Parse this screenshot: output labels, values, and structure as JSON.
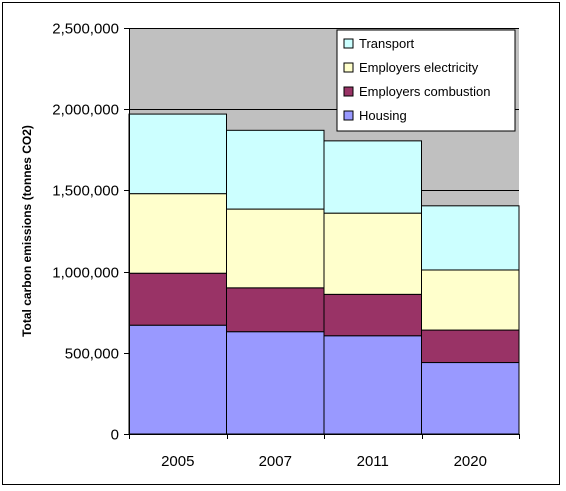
{
  "chart_data": {
    "type": "bar",
    "stacked": true,
    "categories": [
      "2005",
      "2007",
      "2011",
      "2020"
    ],
    "series": [
      {
        "name": "Housing",
        "color": "#9999ff",
        "values": [
          670000,
          630000,
          605000,
          440000
        ]
      },
      {
        "name": "Employers combustion",
        "color": "#993366",
        "values": [
          320000,
          270000,
          255000,
          200000
        ]
      },
      {
        "name": "Employers electricity",
        "color": "#ffffcc",
        "values": [
          490000,
          485000,
          500000,
          370000
        ]
      },
      {
        "name": "Transport",
        "color": "#ccffff",
        "values": [
          490000,
          485000,
          445000,
          395000
        ]
      }
    ],
    "ylabel": "Total carbon emissions (tonnes CO2)",
    "ylim": [
      0,
      2500000
    ],
    "yticks": [
      0,
      500000,
      1000000,
      1500000,
      2000000,
      2500000
    ],
    "ytick_labels": [
      "0",
      "500,000",
      "1,000,000",
      "1,500,000",
      "2,000,000",
      "2,500,000"
    ],
    "grid": true,
    "plot_background": "#c0c0c0",
    "legend_position": "top-right",
    "legend_order": [
      "Transport",
      "Employers electricity",
      "Employers combustion",
      "Housing"
    ]
  }
}
